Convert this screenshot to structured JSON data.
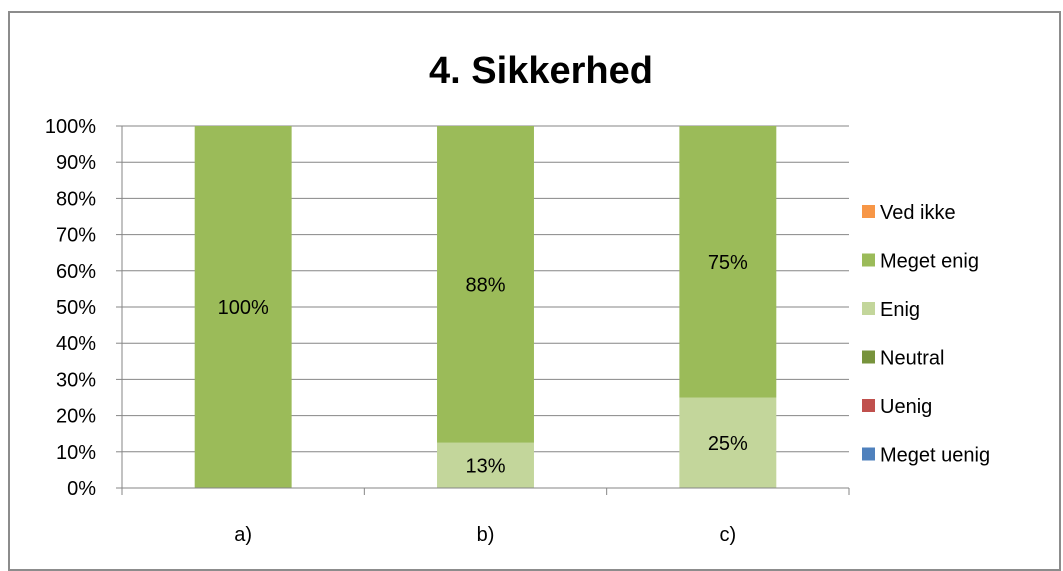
{
  "chart_data": {
    "type": "bar",
    "stacked": true,
    "title": "4. Sikkerhed",
    "xlabel": "",
    "ylabel": "",
    "categories": [
      "a)",
      "b)",
      "c)"
    ],
    "ylim": [
      0,
      100
    ],
    "ytick_labels": [
      "0%",
      "10%",
      "20%",
      "30%",
      "40%",
      "50%",
      "60%",
      "70%",
      "80%",
      "90%",
      "100%"
    ],
    "grid": true,
    "legend_position": "right",
    "series": [
      {
        "name": "Meget uenig",
        "values": [
          0,
          0,
          0
        ],
        "color": "#4f81bd",
        "labels": [
          "",
          "",
          ""
        ]
      },
      {
        "name": "Uenig",
        "values": [
          0,
          0,
          0
        ],
        "color": "#c0504d",
        "labels": [
          "",
          "",
          ""
        ]
      },
      {
        "name": "Neutral",
        "values": [
          0,
          0,
          0
        ],
        "color": "#77933c",
        "labels": [
          "",
          "",
          ""
        ]
      },
      {
        "name": "Enig",
        "values": [
          0,
          12.5,
          25
        ],
        "color": "#c3d69b",
        "labels": [
          "",
          "13%",
          "25%"
        ]
      },
      {
        "name": "Meget enig",
        "values": [
          100,
          87.5,
          75
        ],
        "color": "#9bbb59",
        "labels": [
          "100%",
          "88%",
          "75%"
        ]
      },
      {
        "name": "Ved ikke",
        "values": [
          0,
          0,
          0
        ],
        "color": "#f79646",
        "labels": [
          "",
          "",
          ""
        ]
      }
    ],
    "legend_order": [
      "Ved ikke",
      "Meget enig",
      "Enig",
      "Neutral",
      "Uenig",
      "Meget uenig"
    ]
  }
}
